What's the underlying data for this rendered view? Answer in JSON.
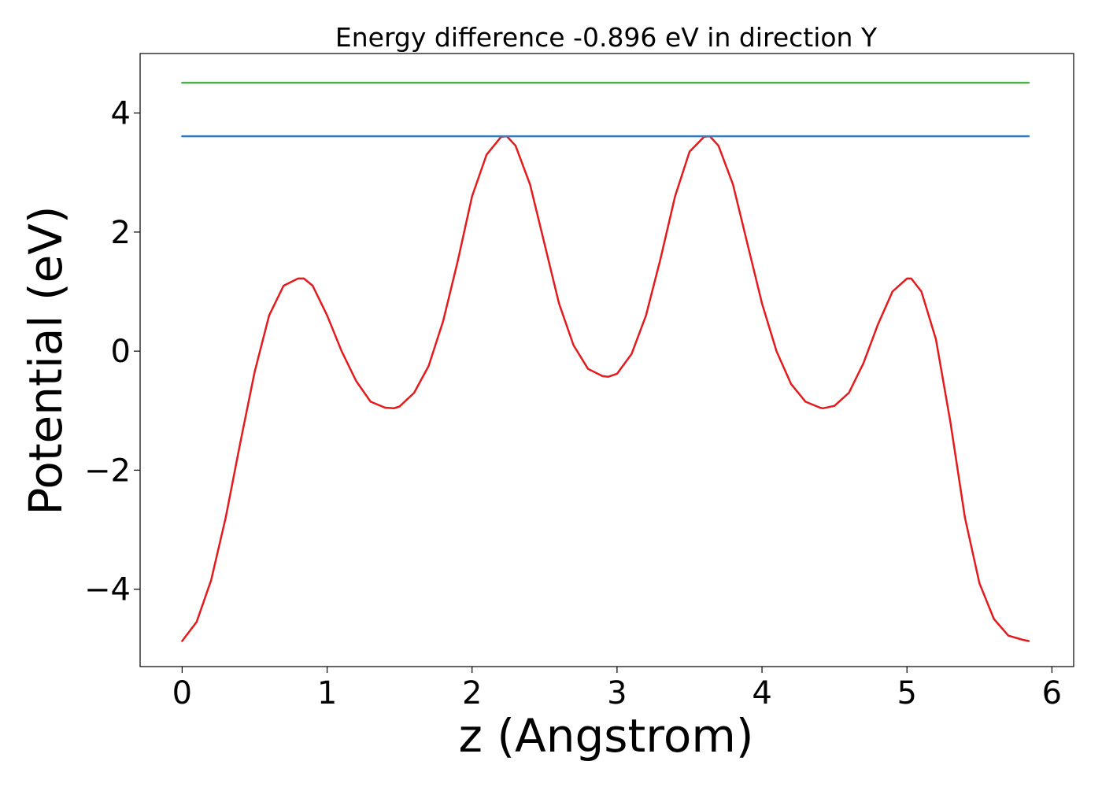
{
  "chart_data": {
    "type": "line",
    "title": "Energy difference -0.896 eV in direction Y",
    "xlabel": "z (Angstrom)",
    "ylabel": "Potential (eV)",
    "xlim": [
      -0.29,
      6.15
    ],
    "ylim": [
      -5.3,
      5.0
    ],
    "xticks": [
      0,
      1,
      2,
      3,
      4,
      5,
      6
    ],
    "xtick_labels": [
      "0",
      "1",
      "2",
      "3",
      "4",
      "5",
      "6"
    ],
    "yticks": [
      -4,
      -2,
      0,
      2,
      4
    ],
    "ytick_labels": [
      "−4",
      "−2",
      "0",
      "2",
      "4"
    ],
    "grid": false,
    "series": [
      {
        "color": "#e41a1c",
        "x": [
          0.0,
          0.1,
          0.2,
          0.3,
          0.4,
          0.5,
          0.6,
          0.7,
          0.8,
          0.84,
          0.9,
          1.0,
          1.1,
          1.2,
          1.3,
          1.4,
          1.46,
          1.5,
          1.6,
          1.7,
          1.8,
          1.9,
          2.0,
          2.1,
          2.2,
          2.24,
          2.3,
          2.4,
          2.5,
          2.6,
          2.7,
          2.8,
          2.9,
          2.94,
          3.0,
          3.1,
          3.2,
          3.3,
          3.4,
          3.5,
          3.6,
          3.64,
          3.7,
          3.8,
          3.9,
          4.0,
          4.1,
          4.2,
          4.3,
          4.4,
          4.42,
          4.5,
          4.6,
          4.7,
          4.8,
          4.9,
          5.0,
          5.03,
          5.1,
          5.2,
          5.3,
          5.4,
          5.5,
          5.6,
          5.7,
          5.8,
          5.84
        ],
        "y": [
          -4.87,
          -4.55,
          -3.85,
          -2.8,
          -1.55,
          -0.35,
          0.6,
          1.1,
          1.22,
          1.22,
          1.1,
          0.6,
          0.0,
          -0.5,
          -0.85,
          -0.95,
          -0.96,
          -0.93,
          -0.7,
          -0.25,
          0.5,
          1.5,
          2.6,
          3.3,
          3.6,
          3.61,
          3.45,
          2.8,
          1.8,
          0.8,
          0.1,
          -0.3,
          -0.42,
          -0.43,
          -0.38,
          -0.05,
          0.6,
          1.55,
          2.6,
          3.35,
          3.6,
          3.61,
          3.45,
          2.8,
          1.8,
          0.8,
          0.0,
          -0.55,
          -0.85,
          -0.95,
          -0.96,
          -0.92,
          -0.7,
          -0.2,
          0.45,
          1.0,
          1.22,
          1.22,
          1.0,
          0.2,
          -1.2,
          -2.8,
          -3.9,
          -4.5,
          -4.78,
          -4.85,
          -4.87
        ]
      },
      {
        "color": "#377eb8",
        "x": [
          0.0,
          5.84
        ],
        "y": [
          3.61,
          3.61
        ]
      },
      {
        "color": "#4daf4a",
        "x": [
          0.0,
          5.84
        ],
        "y": [
          4.51,
          4.51
        ]
      }
    ]
  }
}
